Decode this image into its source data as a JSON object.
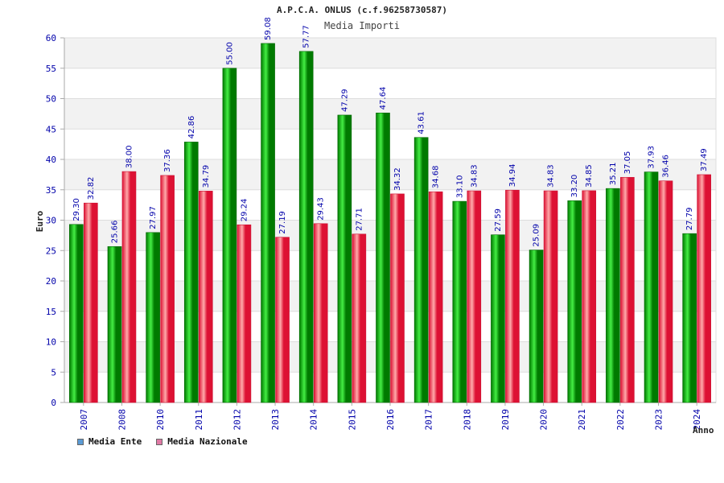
{
  "chart_data": {
    "type": "bar",
    "title": "A.P.C.A. ONLUS (c.f.96258730587)",
    "subtitle": "Media Importi",
    "xlabel": "Anno",
    "ylabel": "Euro",
    "ylim": [
      0,
      60
    ],
    "y_ticks": [
      0,
      5,
      10,
      15,
      20,
      25,
      30,
      35,
      40,
      45,
      50,
      55,
      60
    ],
    "categories": [
      "2007",
      "2008",
      "2010",
      "2011",
      "2012",
      "2013",
      "2014",
      "2015",
      "2016",
      "2017",
      "2018",
      "2019",
      "2020",
      "2021",
      "2022",
      "2023",
      "2024"
    ],
    "series": [
      {
        "name": "Media Ente",
        "values": [
          29.3,
          25.66,
          27.97,
          42.86,
          55.0,
          59.08,
          57.77,
          47.29,
          47.64,
          43.61,
          33.1,
          27.59,
          25.09,
          33.2,
          35.21,
          37.93,
          27.79
        ],
        "labels": [
          "29.30",
          "25.66",
          "27.97",
          "42.86",
          "55.00",
          "59.08",
          "57.77",
          "47.29",
          "47.64",
          "43.61",
          "33.10",
          "27.59",
          "25.09",
          "33.20",
          "35.21",
          "37.93",
          "27.79"
        ]
      },
      {
        "name": "Media Nazionale",
        "values": [
          32.82,
          38.0,
          37.36,
          34.79,
          29.24,
          27.19,
          29.43,
          27.71,
          34.32,
          34.68,
          34.83,
          34.94,
          34.83,
          34.85,
          37.05,
          36.46,
          37.49
        ],
        "labels": [
          "32.82",
          "38.00",
          "37.36",
          "34.79",
          "29.24",
          "27.19",
          "29.43",
          "27.71",
          "34.32",
          "34.68",
          "34.83",
          "34.94",
          "34.83",
          "34.85",
          "37.05",
          "36.46",
          "37.49"
        ]
      }
    ],
    "legend": {
      "position": "bottom-left",
      "items": [
        {
          "label": "Media Ente",
          "color": "#5b9bd5"
        },
        {
          "label": "Media Nazionale",
          "color": "#e07aa5"
        }
      ]
    },
    "grid": true
  },
  "colors": {
    "bar_ente_dark": "#007a00",
    "bar_ente_light": "#44ee44",
    "bar_naz_dark": "#dd1133",
    "bar_naz_light": "#ffaaaa",
    "band_fill": "#f2f2f2",
    "grid_line": "#dddddd",
    "axis_line": "#aaaaaa",
    "tick_text": "#0000aa"
  }
}
